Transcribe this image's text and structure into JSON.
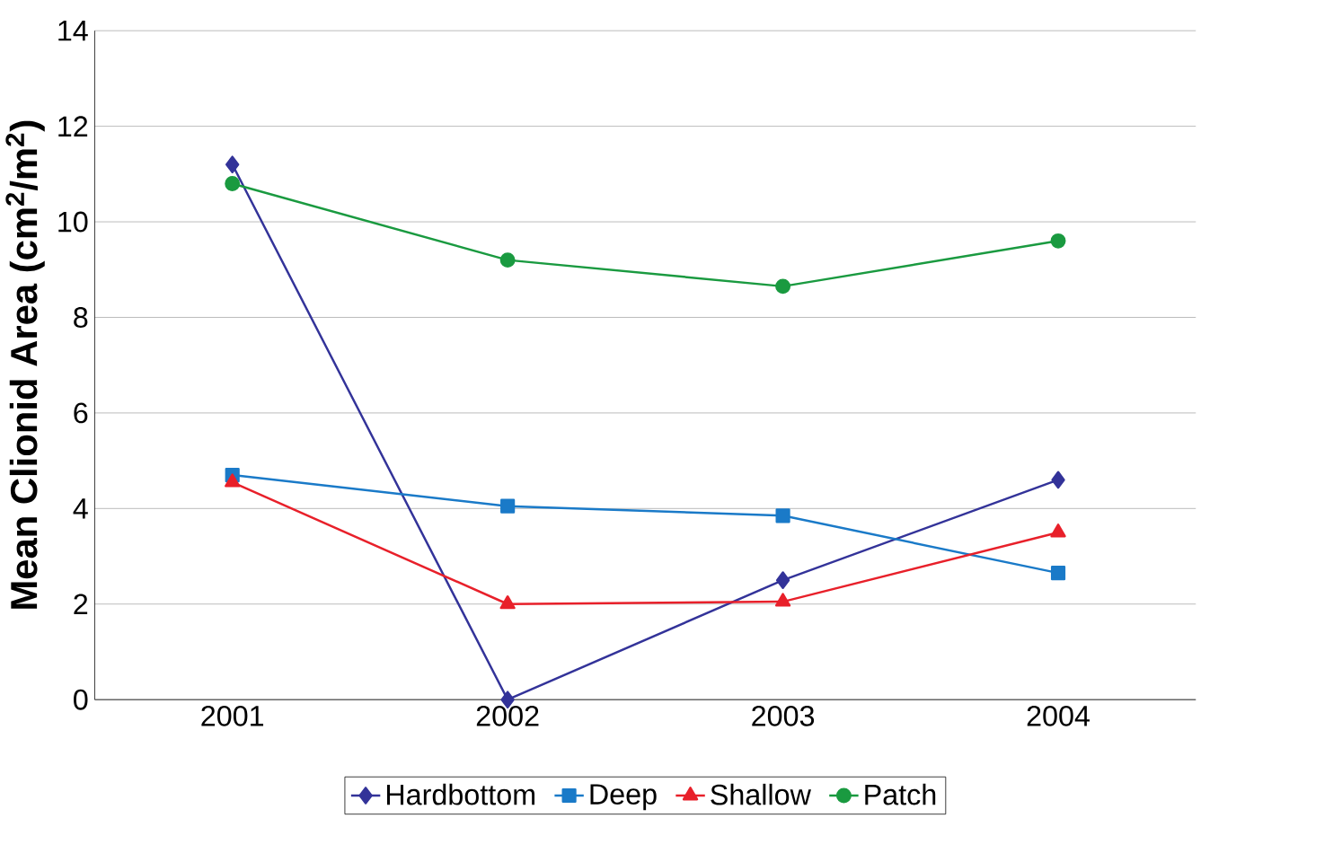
{
  "chart_data": {
    "type": "line",
    "ylabel": "**Mean Clionid Area (cm$^{2}$/m$^{2}$)**",
    "categories": [
      "2001",
      "2002",
      "2003",
      "2004"
    ],
    "series": [
      {
        "name": "Hardbottom",
        "color": "#333399",
        "marker": "diamond",
        "values": [
          11.2,
          0,
          2.5,
          4.6
        ]
      },
      {
        "name": "Deep",
        "color": "#1a7ac8",
        "marker": "square",
        "values": [
          4.7,
          4.05,
          3.85,
          2.65
        ]
      },
      {
        "name": "Shallow",
        "color": "#e8202a",
        "marker": "triangle",
        "values": [
          4.55,
          2.0,
          2.05,
          3.5
        ]
      },
      {
        "name": "Patch",
        "color": "#1a9a40",
        "marker": "circle",
        "values": [
          10.8,
          9.2,
          8.65,
          9.6
        ]
      }
    ],
    "ylim": [
      0,
      14
    ],
    "yticks": [
      0,
      2,
      4,
      6,
      8,
      10,
      12,
      14
    ],
    "grid": "y",
    "legend": "bottom"
  }
}
